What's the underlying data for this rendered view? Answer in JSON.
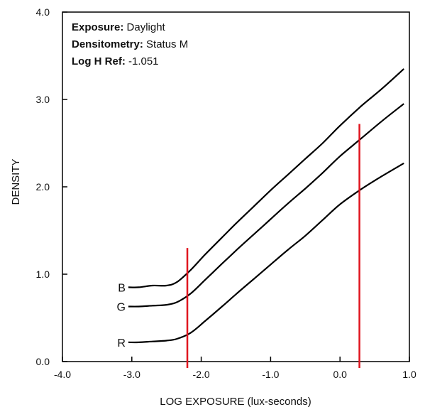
{
  "info": {
    "exposure_key": "Exposure:",
    "exposure_value": " Daylight",
    "densitometry_key": "Densitometry:",
    "densitometry_value": " Status M",
    "logh_key": "Log H Ref:",
    "logh_value": " -1.051"
  },
  "colors": {
    "curve": "#000000",
    "marker": "#e0141e",
    "frame": "#000000"
  },
  "chart_data": {
    "type": "line",
    "xlabel": "LOG EXPOSURE (lux-seconds)",
    "ylabel": "DENSITY",
    "xlim": [
      -4.0,
      1.0
    ],
    "ylim": [
      0.0,
      4.0
    ],
    "xticks": [
      -4.0,
      -3.0,
      -2.0,
      -1.0,
      0.0,
      1.0
    ],
    "xtick_labels": [
      "-4.0",
      "-3.0",
      "-2.0",
      "-1.0",
      "0.0",
      "1.0"
    ],
    "yticks": [
      0.0,
      1.0,
      2.0,
      3.0,
      4.0
    ],
    "ytick_labels": [
      "0.0",
      "1.0",
      "2.0",
      "3.0",
      "4.0"
    ],
    "grid": false,
    "series": [
      {
        "name": "B",
        "x": [
          -3.05,
          -2.9,
          -2.7,
          -2.5,
          -2.35,
          -2.15,
          -1.95,
          -1.7,
          -1.5,
          -1.25,
          -1.0,
          -0.75,
          -0.5,
          -0.25,
          0.0,
          0.3,
          0.6,
          0.92
        ],
        "y": [
          0.85,
          0.85,
          0.87,
          0.87,
          0.91,
          1.05,
          1.22,
          1.42,
          1.58,
          1.77,
          1.96,
          2.14,
          2.32,
          2.5,
          2.7,
          2.92,
          3.12,
          3.35
        ]
      },
      {
        "name": "G",
        "x": [
          -3.05,
          -2.9,
          -2.7,
          -2.5,
          -2.35,
          -2.15,
          -1.95,
          -1.7,
          -1.5,
          -1.25,
          -1.0,
          -0.75,
          -0.5,
          -0.25,
          0.0,
          0.3,
          0.6,
          0.92
        ],
        "y": [
          0.63,
          0.63,
          0.64,
          0.65,
          0.68,
          0.78,
          0.93,
          1.12,
          1.27,
          1.45,
          1.63,
          1.81,
          1.98,
          2.16,
          2.35,
          2.55,
          2.75,
          2.95
        ]
      },
      {
        "name": "R",
        "x": [
          -3.05,
          -2.9,
          -2.7,
          -2.5,
          -2.35,
          -2.15,
          -1.95,
          -1.7,
          -1.5,
          -1.25,
          -1.0,
          -0.75,
          -0.5,
          -0.25,
          0.0,
          0.3,
          0.6,
          0.92
        ],
        "y": [
          0.22,
          0.22,
          0.23,
          0.24,
          0.26,
          0.33,
          0.46,
          0.63,
          0.77,
          0.94,
          1.11,
          1.28,
          1.44,
          1.62,
          1.8,
          1.97,
          2.12,
          2.27
        ]
      }
    ],
    "vlines": [
      {
        "x": -2.2,
        "y": [
          0.0,
          1.3
        ]
      },
      {
        "x": 0.28,
        "y": [
          0.0,
          2.72
        ]
      }
    ]
  }
}
